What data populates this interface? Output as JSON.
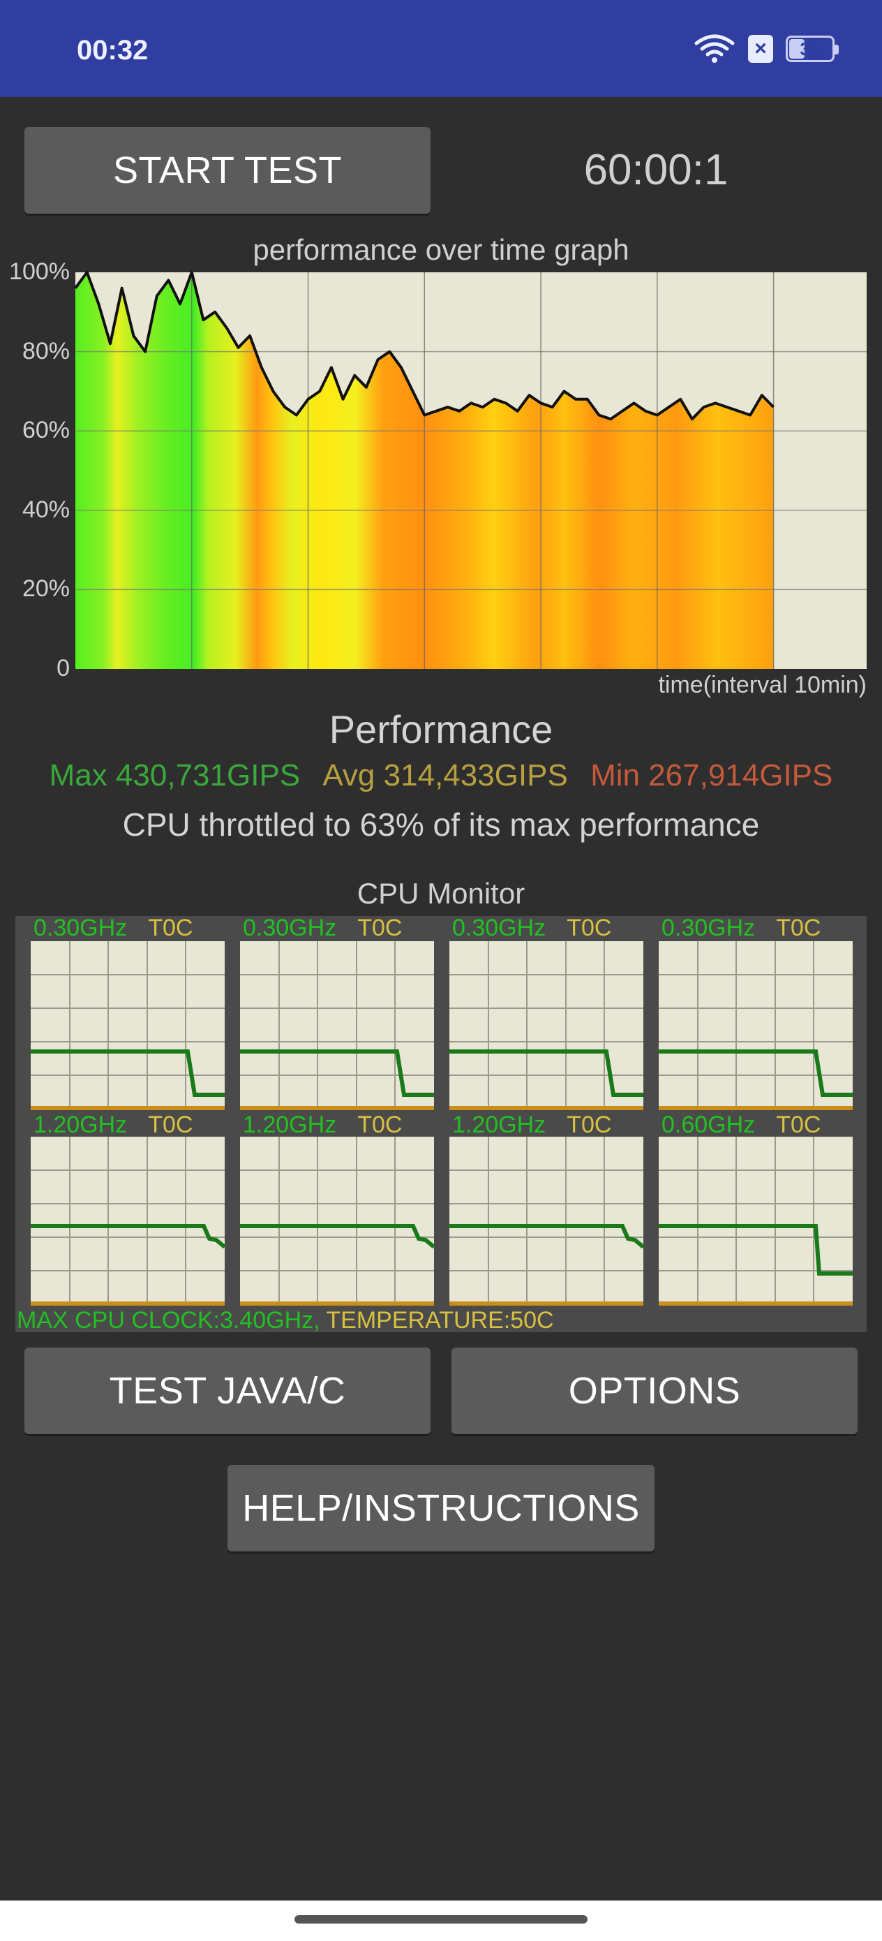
{
  "status_bar": {
    "time": "00:32",
    "battery": "36"
  },
  "controls": {
    "start_test": "START TEST",
    "timer": "60:00:1",
    "test_java": "TEST JAVA/C",
    "options": "OPTIONS",
    "help": "HELP/INSTRUCTIONS"
  },
  "graph": {
    "title": "performance over time graph",
    "y_ticks": [
      "100%",
      "80%",
      "60%",
      "40%",
      "20%",
      "0"
    ],
    "x_caption": "time(interval 10min)"
  },
  "performance": {
    "title": "Performance",
    "max": "Max 430,731GIPS",
    "avg": "Avg 314,433GIPS",
    "min": "Min 267,914GIPS",
    "throttle_text": "CPU throttled to 63% of its max performance",
    "colors": {
      "max": "#3aa83a",
      "avg": "#b8a040",
      "min": "#c45a3a"
    }
  },
  "cpu_monitor": {
    "title": "CPU Monitor",
    "cores": [
      {
        "freq": "0.30GHz",
        "temp": "T0C"
      },
      {
        "freq": "0.30GHz",
        "temp": "T0C"
      },
      {
        "freq": "0.30GHz",
        "temp": "T0C"
      },
      {
        "freq": "0.30GHz",
        "temp": "T0C"
      },
      {
        "freq": "1.20GHz",
        "temp": "T0C"
      },
      {
        "freq": "1.20GHz",
        "temp": "T0C"
      },
      {
        "freq": "1.20GHz",
        "temp": "T0C"
      },
      {
        "freq": "0.60GHz",
        "temp": "T0C"
      }
    ],
    "max_clock": "MAX CPU CLOCK:3.40GHz,",
    "temperature": "TEMPERATURE:50C"
  },
  "chart_data": {
    "type": "area",
    "title": "performance over time graph",
    "xlabel": "time(interval 10min)",
    "ylabel": "",
    "ylim": [
      0,
      100
    ],
    "x_unit": "minutes",
    "x": [
      0,
      1,
      2,
      3,
      4,
      5,
      6,
      7,
      8,
      9,
      10,
      11,
      12,
      13,
      14,
      15,
      16,
      17,
      18,
      19,
      20,
      21,
      22,
      23,
      24,
      25,
      26,
      27,
      28,
      29,
      30,
      31,
      32,
      33,
      34,
      35,
      36,
      37,
      38,
      39,
      40,
      41,
      42,
      43,
      44,
      45,
      46,
      47,
      48,
      49,
      50,
      51,
      52,
      53,
      54,
      55,
      56,
      57,
      58,
      59,
      60
    ],
    "series": [
      {
        "values": [
          96,
          100,
          92,
          82,
          96,
          84,
          80,
          94,
          98,
          92,
          100,
          88,
          90,
          86,
          81,
          84,
          76,
          70,
          66,
          64,
          68,
          70,
          76,
          68,
          74,
          71,
          78,
          80,
          76,
          70,
          64,
          65,
          66,
          65,
          67,
          66,
          68,
          67,
          65,
          69,
          67,
          66,
          70,
          68,
          68,
          64,
          63,
          65,
          67,
          65,
          64,
          66,
          68,
          63,
          66,
          67,
          66,
          65,
          64,
          69,
          66
        ]
      }
    ]
  }
}
